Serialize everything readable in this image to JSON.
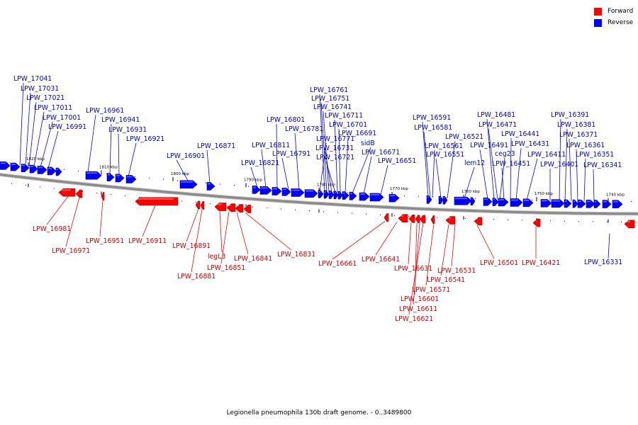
{
  "title": "Legionella pneumophila 130b draft genome. - 0..3489800",
  "legend": {
    "forward_label": "Forward",
    "reverse_label": "Reverse",
    "forward_color": "#ff0000",
    "reverse_color": "#0000ff"
  },
  "colors": {
    "reverse_label": "#0000cc",
    "forward_label": "#cc0000",
    "backbone": "#8a8a8a"
  },
  "scale_labels": [
    "1820 kbp",
    "1810 kbp",
    "1800 kbp",
    "1790 kbp",
    "1780 kbp",
    "1770 kbp",
    "1760 kbp",
    "1750 kbp",
    "1740 kbp"
  ],
  "reverse_genes": [
    "LPW_17041",
    "LPW_17031",
    "LPW_17021",
    "LPW_17011",
    "LPW_17001",
    "LPW_16991",
    "LPW_16961",
    "LPW_16941",
    "LPW_16931",
    "LPW_16921",
    "LPW_16901",
    "LPW_16871",
    "LPW_16821",
    "LPW_16811",
    "LPW_16801",
    "LPW_16791",
    "LPW_16781",
    "LPW_16771",
    "LPW_16761",
    "LPW_16751",
    "LPW_16741",
    "LPW_16731",
    "LPW_16721",
    "LPW_16711",
    "LPW_16701",
    "LPW_16691",
    "sidB",
    "LPW_16671",
    "LPW_16651",
    "LPW_16591",
    "LPW_16581",
    "LPW_16561",
    "LPW_16551",
    "LPW_16521",
    "lem12",
    "LPW_16491",
    "LPW_16481",
    "LPW_16471",
    "ceg23",
    "LPW_16451",
    "LPW_16441",
    "LPW_16431",
    "LPW_16411",
    "LPW_16401",
    "LPW_16391",
    "LPW_16381",
    "LPW_16371",
    "LPW_16361",
    "LPW_16351",
    "LPW_16341",
    "LPW_16331"
  ],
  "forward_genes": [
    "LPW_16981",
    "LPW_16971",
    "LPW_16951",
    "LPW_16911",
    "LPW_16891",
    "LPW_16881",
    "legL3",
    "LPW_16851",
    "LPW_16841",
    "LPW_16831",
    "LPW_16661",
    "LPW_16641",
    "LPW_16631",
    "LPW_16601",
    "LPW_16611",
    "LPW_16621",
    "LPW_16571",
    "LPW_16541",
    "LPW_16531",
    "LPW_16501",
    "LPW_16421"
  ]
}
